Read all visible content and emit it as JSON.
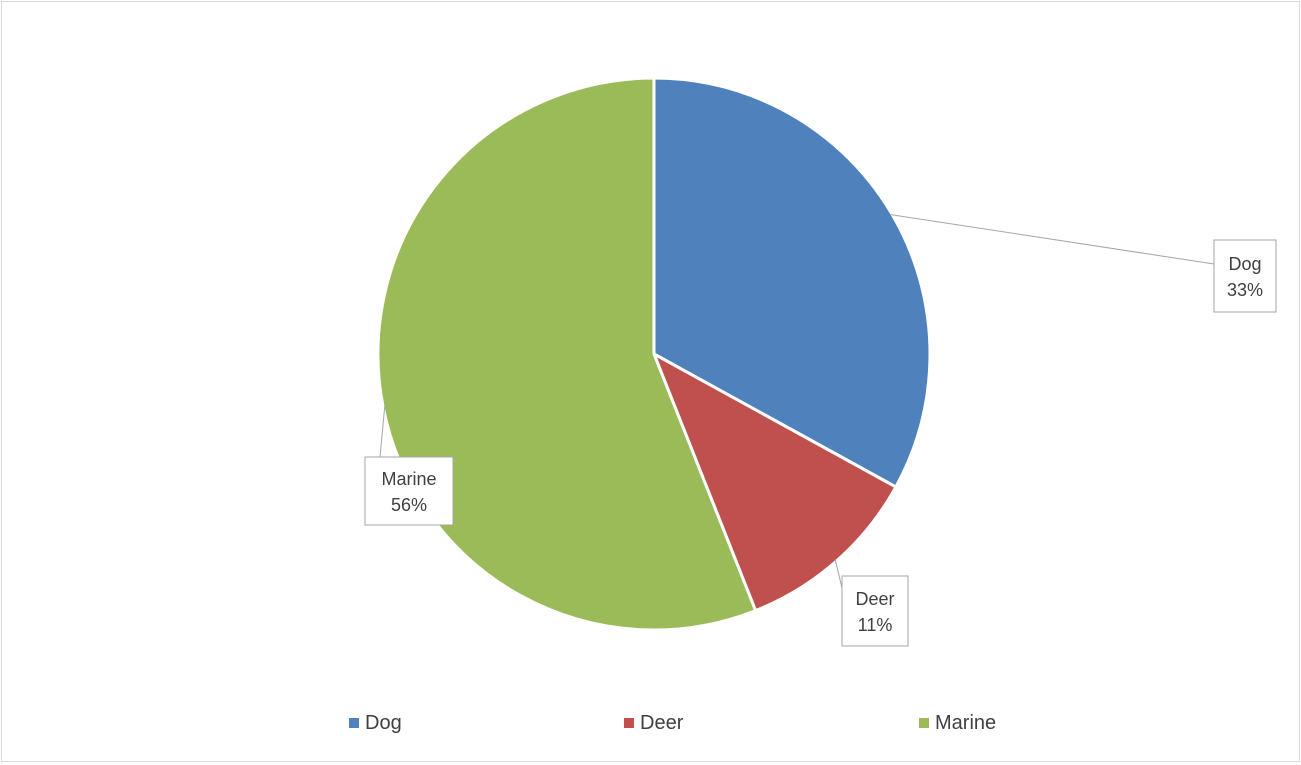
{
  "chart_data": {
    "type": "pie",
    "title": "",
    "categories": [
      "Dog",
      "Deer",
      "Marine"
    ],
    "values": [
      33,
      11,
      56
    ],
    "labels": [
      "33%",
      "11%",
      "56%"
    ],
    "colors": [
      "#4f81bd",
      "#c0504d",
      "#9bbb59"
    ],
    "legend": "bottom",
    "grid": false
  }
}
